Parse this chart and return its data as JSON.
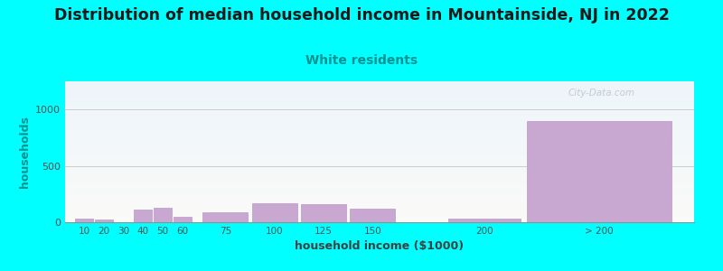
{
  "title": "Distribution of median household income in Mountainside, NJ in 2022",
  "subtitle": "White residents",
  "xlabel": "household income ($1000)",
  "ylabel": "households",
  "background_color": "#00FFFF",
  "bar_color": "#c8a8d0",
  "bar_edge_color": "#b898c8",
  "title_fontsize": 12.5,
  "subtitle_fontsize": 10,
  "subtitle_color": "#009090",
  "axis_label_fontsize": 9,
  "tick_label_color": "#505050",
  "ylabel_color": "#009090",
  "xlabel_color": "#404040",
  "ylim": [
    0,
    1250
  ],
  "yticks": [
    0,
    500,
    1000
  ],
  "categories": [
    "10",
    "20",
    "30",
    "40",
    "50",
    "60",
    "75",
    "100",
    "125",
    "150",
    "200",
    "> 200"
  ],
  "values": [
    30,
    22,
    2,
    110,
    130,
    50,
    85,
    170,
    162,
    118,
    30,
    900
  ],
  "bar_positions": [
    10,
    20,
    30,
    40,
    50,
    60,
    75,
    100,
    125,
    150,
    200,
    240
  ],
  "bar_actual_widths": [
    10,
    10,
    10,
    10,
    10,
    10,
    25,
    25,
    25,
    25,
    40,
    80
  ],
  "watermark_text": "City-Data.com",
  "gridlines_color": "#cccccc",
  "xlim": [
    5,
    325
  ]
}
